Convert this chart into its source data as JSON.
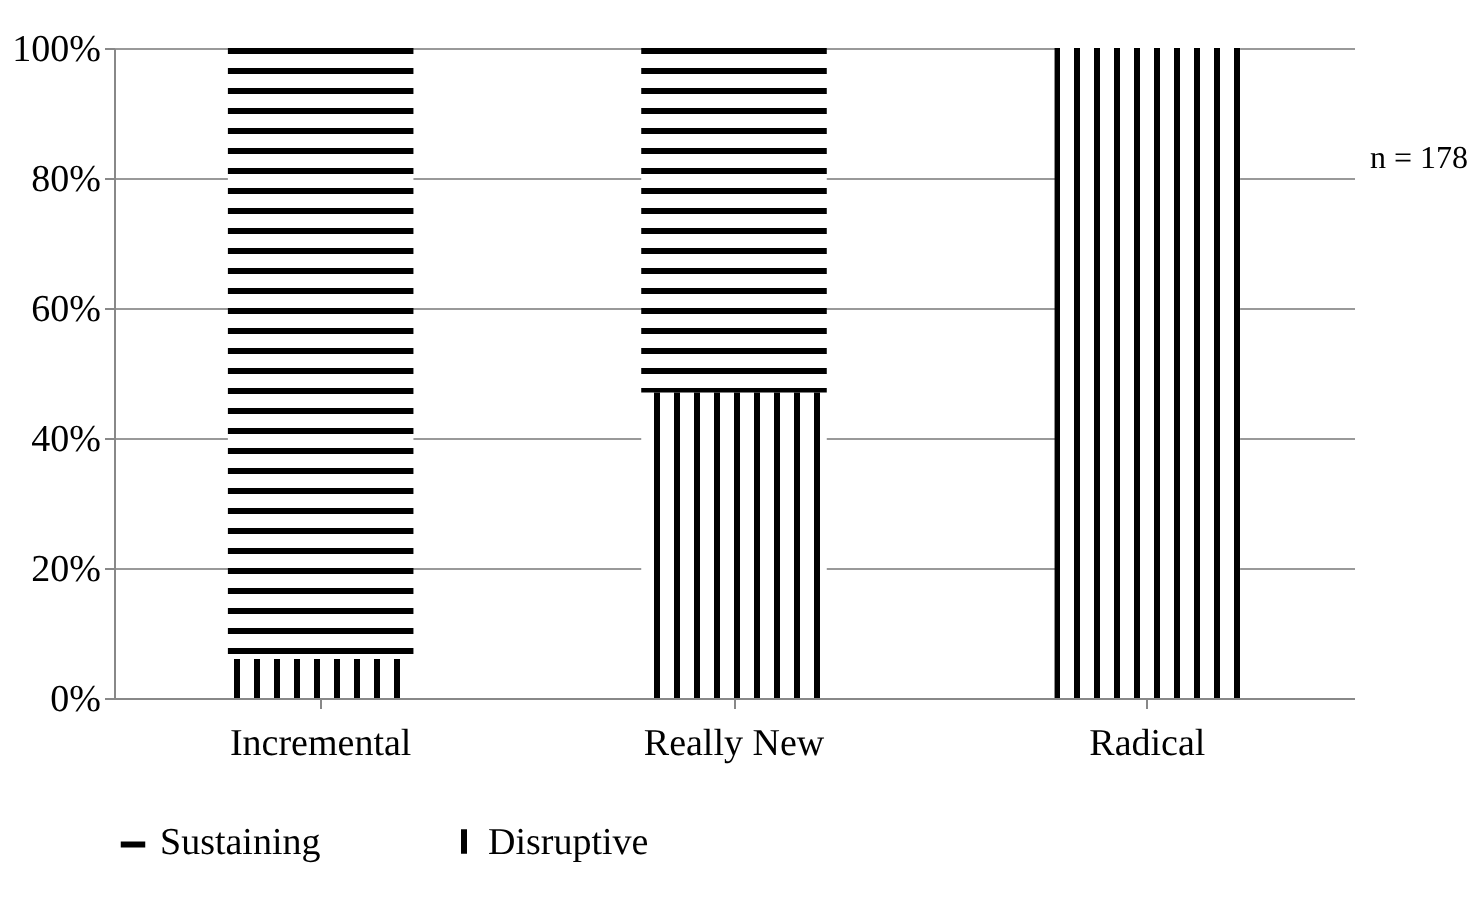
{
  "chart_data": {
    "type": "bar",
    "stacked": true,
    "categories": [
      "Incremental",
      "Really New",
      "Radical"
    ],
    "series": [
      {
        "name": "Disruptive",
        "color": "#000000",
        "values": [
          6,
          47,
          100
        ]
      },
      {
        "name": "Sustaining",
        "color": "#000000",
        "values": [
          94,
          53,
          0
        ]
      }
    ],
    "ylim": [
      0,
      100
    ],
    "yticks": [
      {
        "value": 0,
        "label": "0%"
      },
      {
        "value": 20,
        "label": "20%"
      },
      {
        "value": 40,
        "label": "40%"
      },
      {
        "value": 60,
        "label": "60%"
      },
      {
        "value": 80,
        "label": "80%"
      },
      {
        "value": 100,
        "label": "100%"
      }
    ],
    "grid": "y",
    "legend": "bottom",
    "annotations": [
      "n = 178"
    ]
  }
}
